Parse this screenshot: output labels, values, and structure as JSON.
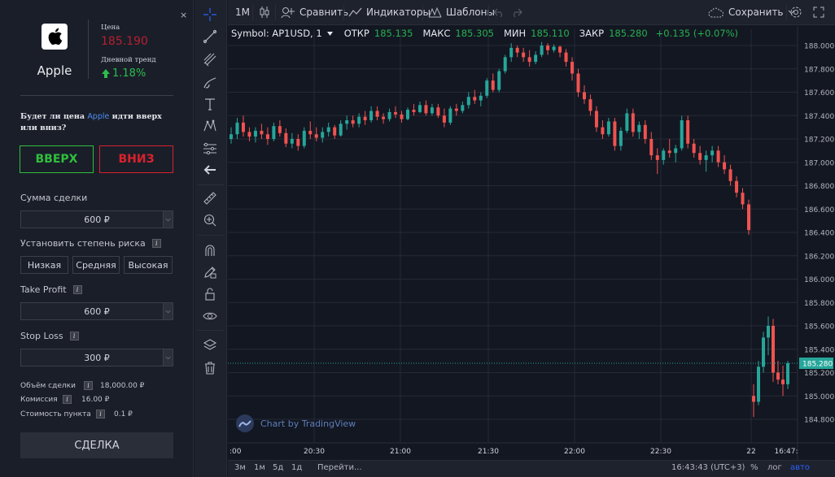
{
  "panel": {
    "close": "×",
    "asset_name": "Apple",
    "price_label": "Цена",
    "price_value": "185.190",
    "trend_label": "Дневной тренд",
    "trend_value": "1.18%",
    "question_pre": "Будет ли цена",
    "question_asset": "Apple",
    "question_post": "идти вверх или вниз?",
    "up_label": "ВВЕРХ",
    "down_label": "ВНИЗ",
    "amount_label": "Сумма сделки",
    "amount_value": "600 ₽",
    "risk_label": "Установить степень риска",
    "risk_options": [
      "Низкая",
      "Средняя",
      "Высокая"
    ],
    "tp_label": "Take Profit",
    "tp_value": "600 ₽",
    "sl_label": "Stop Loss",
    "sl_value": "300 ₽",
    "volume_label": "Объём сделки",
    "volume_value": "18,000.00 ₽",
    "commission_label": "Комиссия",
    "commission_value": "16.00 ₽",
    "pip_label": "Стоимость пункта",
    "pip_value": "0.1 ₽",
    "deal_label": "СДЕЛКА",
    "info_glyph": "i",
    "colors": {
      "up": "#2fbf3c",
      "down": "#d8222c",
      "price": "#b6202e",
      "trend": "#2dbd4e",
      "accent": "#4f8cf0"
    }
  },
  "topbar": {
    "interval": "1M",
    "compare": "Сравнить",
    "indicators": "Индикаторы",
    "templates": "Шаблоны",
    "save": "Сохранить"
  },
  "legend": {
    "symbol": "Symbol: AP1USD, 1",
    "open_label": "ОТКР",
    "open": "185.135",
    "high_label": "МАКС",
    "high": "185.305",
    "low_label": "МИН",
    "low": "185.110",
    "close_label": "ЗАКР",
    "close": "185.280",
    "change": "+0.135 (+0.07%)"
  },
  "watermark": "Chart by TradingView",
  "bottombar": {
    "ranges": [
      "3м",
      "1м",
      "5д",
      "1д"
    ],
    "goto": "Перейти...",
    "time": "16:43:43 (UTC+3)",
    "percent": "%",
    "log": "лог",
    "auto": "авто"
  },
  "chart_data": {
    "type": "candlestick",
    "y_ticks": [
      "188.000",
      "187.800",
      "187.600",
      "187.400",
      "187.200",
      "187.000",
      "186.800",
      "186.600",
      "186.400",
      "186.200",
      "186.000",
      "185.800",
      "185.600",
      "185.400",
      "185.200",
      "185.000",
      "184.800"
    ],
    "x_ticks": [
      ":00",
      "20:30",
      "21:00",
      "21:30",
      "22:00",
      "22:30",
      "22",
      "16:47:"
    ],
    "last_price_label": "185.280",
    "last_price": 185.28,
    "ylim": [
      184.72,
      188.1
    ],
    "colors": {
      "up": "#26a69a",
      "down": "#ef5350",
      "last": "#26a69a"
    },
    "candles": [
      [
        187.2,
        187.3,
        187.16,
        187.24
      ],
      [
        187.24,
        187.38,
        187.2,
        187.34
      ],
      [
        187.34,
        187.4,
        187.22,
        187.26
      ],
      [
        187.26,
        187.3,
        187.18,
        187.22
      ],
      [
        187.22,
        187.3,
        187.17,
        187.27
      ],
      [
        187.27,
        187.33,
        187.2,
        187.24
      ],
      [
        187.24,
        187.3,
        187.15,
        187.2
      ],
      [
        187.2,
        187.34,
        187.18,
        187.31
      ],
      [
        187.31,
        187.36,
        187.22,
        187.25
      ],
      [
        187.25,
        187.29,
        187.13,
        187.16
      ],
      [
        187.16,
        187.25,
        187.12,
        187.2
      ],
      [
        187.2,
        187.24,
        187.1,
        187.14
      ],
      [
        187.14,
        187.3,
        187.12,
        187.27
      ],
      [
        187.27,
        187.35,
        187.2,
        187.24
      ],
      [
        187.24,
        187.3,
        187.18,
        187.21
      ],
      [
        187.21,
        187.3,
        187.17,
        187.26
      ],
      [
        187.26,
        187.34,
        187.22,
        187.3
      ],
      [
        187.3,
        187.32,
        187.2,
        187.23
      ],
      [
        187.23,
        187.36,
        187.22,
        187.33
      ],
      [
        187.33,
        187.4,
        187.28,
        187.36
      ],
      [
        187.36,
        187.4,
        187.3,
        187.33
      ],
      [
        187.33,
        187.42,
        187.3,
        187.39
      ],
      [
        187.39,
        187.44,
        187.32,
        187.36
      ],
      [
        187.36,
        187.48,
        187.34,
        187.44
      ],
      [
        187.44,
        187.48,
        187.36,
        187.39
      ],
      [
        187.39,
        187.42,
        187.33,
        187.37
      ],
      [
        187.37,
        187.46,
        187.35,
        187.43
      ],
      [
        187.43,
        187.48,
        187.38,
        187.41
      ],
      [
        187.41,
        187.44,
        187.34,
        187.37
      ],
      [
        187.37,
        187.47,
        187.36,
        187.45
      ],
      [
        187.45,
        187.5,
        187.4,
        187.43
      ],
      [
        187.43,
        187.52,
        187.42,
        187.49
      ],
      [
        187.49,
        187.53,
        187.4,
        187.42
      ],
      [
        187.42,
        187.5,
        187.4,
        187.47
      ],
      [
        187.47,
        187.5,
        187.38,
        187.4
      ],
      [
        187.4,
        187.46,
        187.3,
        187.34
      ],
      [
        187.34,
        187.48,
        187.32,
        187.46
      ],
      [
        187.46,
        187.5,
        187.4,
        187.44
      ],
      [
        187.44,
        187.52,
        187.42,
        187.49
      ],
      [
        187.49,
        187.6,
        187.46,
        187.56
      ],
      [
        187.56,
        187.62,
        187.5,
        187.53
      ],
      [
        187.53,
        187.6,
        187.48,
        187.57
      ],
      [
        187.57,
        187.72,
        187.55,
        187.7
      ],
      [
        187.7,
        187.76,
        187.6,
        187.62
      ],
      [
        187.62,
        187.8,
        187.6,
        187.78
      ],
      [
        187.78,
        187.92,
        187.76,
        187.9
      ],
      [
        187.9,
        188.02,
        187.86,
        187.98
      ],
      [
        187.98,
        188.0,
        187.9,
        187.94
      ],
      [
        187.94,
        187.98,
        187.86,
        187.9
      ],
      [
        187.9,
        187.96,
        187.82,
        187.86
      ],
      [
        187.86,
        187.95,
        187.84,
        187.92
      ],
      [
        187.92,
        188.03,
        187.9,
        188.0
      ],
      [
        188.0,
        188.02,
        187.92,
        187.96
      ],
      [
        187.96,
        188.01,
        187.94,
        187.99
      ],
      [
        187.99,
        188.0,
        187.9,
        187.94
      ],
      [
        187.94,
        187.97,
        187.82,
        187.86
      ],
      [
        187.86,
        187.9,
        187.7,
        187.76
      ],
      [
        187.76,
        187.8,
        187.56,
        187.6
      ],
      [
        187.6,
        187.66,
        187.5,
        187.54
      ],
      [
        187.54,
        187.58,
        187.4,
        187.44
      ],
      [
        187.44,
        187.48,
        187.26,
        187.3
      ],
      [
        187.3,
        187.36,
        187.2,
        187.24
      ],
      [
        187.24,
        187.38,
        187.22,
        187.35
      ],
      [
        187.35,
        187.38,
        187.1,
        187.14
      ],
      [
        187.14,
        187.3,
        187.1,
        187.27
      ],
      [
        187.27,
        187.46,
        187.25,
        187.42
      ],
      [
        187.42,
        187.46,
        187.22,
        187.26
      ],
      [
        187.26,
        187.35,
        187.2,
        187.32
      ],
      [
        187.32,
        187.36,
        187.16,
        187.2
      ],
      [
        187.2,
        187.26,
        187.02,
        187.06
      ],
      [
        187.06,
        187.12,
        186.9,
        187.02
      ],
      [
        187.02,
        187.12,
        186.98,
        187.1
      ],
      [
        187.1,
        187.2,
        187.04,
        187.08
      ],
      [
        187.08,
        187.15,
        187.0,
        187.12
      ],
      [
        187.12,
        187.4,
        187.1,
        187.36
      ],
      [
        187.36,
        187.4,
        187.12,
        187.16
      ],
      [
        187.16,
        187.2,
        187.04,
        187.08
      ],
      [
        187.08,
        187.14,
        186.98,
        187.02
      ],
      [
        187.02,
        187.1,
        186.92,
        187.06
      ],
      [
        187.06,
        187.14,
        187.0,
        187.1
      ],
      [
        187.1,
        187.14,
        186.96,
        187.0
      ],
      [
        187.0,
        187.06,
        186.9,
        186.94
      ],
      [
        186.94,
        186.98,
        186.8,
        186.84
      ],
      [
        186.84,
        186.88,
        186.7,
        186.74
      ],
      [
        186.74,
        186.78,
        186.6,
        186.64
      ],
      [
        186.64,
        186.68,
        186.38,
        186.42
      ],
      [
        185.0,
        185.1,
        184.82,
        184.95
      ],
      [
        184.95,
        185.3,
        184.92,
        185.25
      ],
      [
        185.25,
        185.55,
        185.2,
        185.5
      ],
      [
        185.5,
        185.68,
        185.35,
        185.6
      ],
      [
        185.6,
        185.66,
        185.12,
        185.2
      ],
      [
        185.2,
        185.3,
        185.1,
        185.14
      ],
      [
        185.14,
        185.26,
        185.0,
        185.1
      ],
      [
        185.1,
        185.3,
        185.06,
        185.28
      ]
    ]
  }
}
